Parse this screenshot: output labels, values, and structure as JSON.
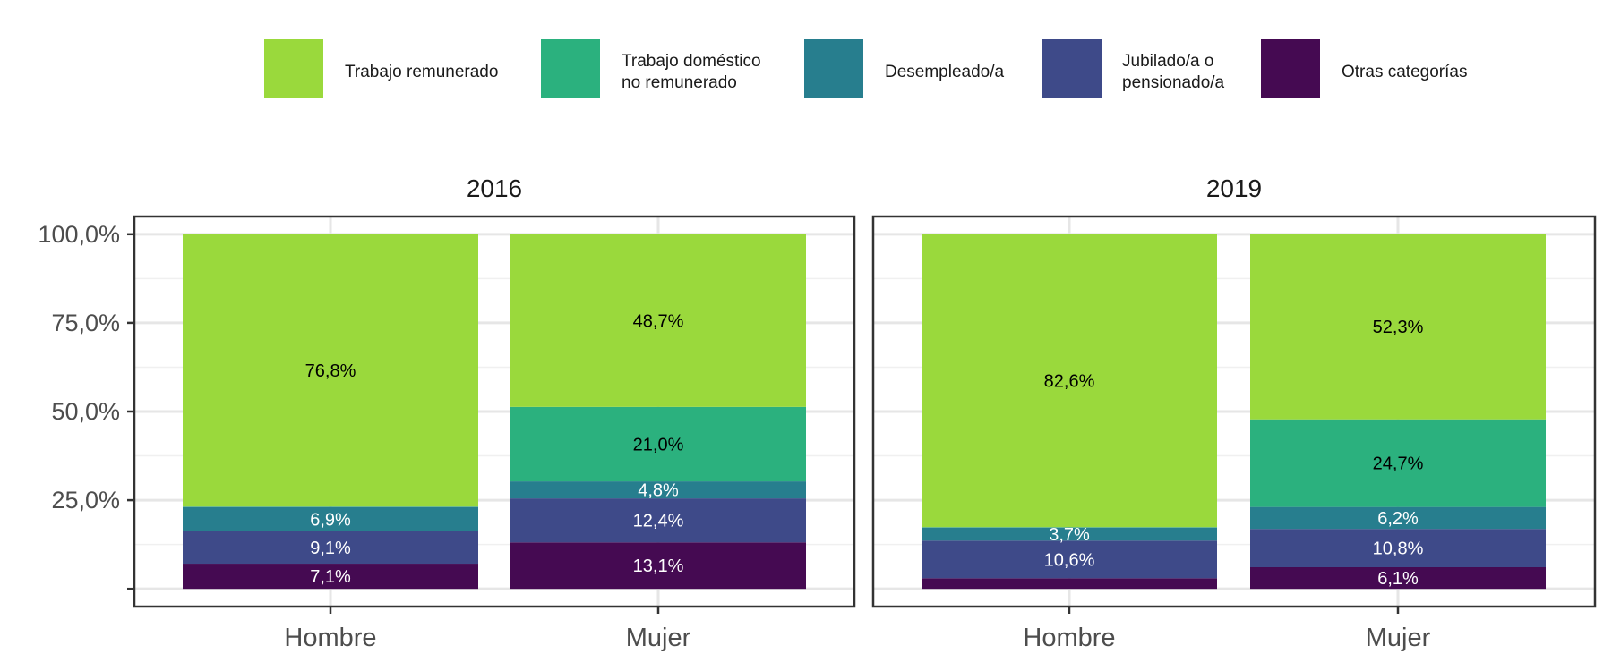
{
  "chart_data": {
    "type": "bar",
    "stacked": true,
    "percent": true,
    "ylim": [
      0,
      100
    ],
    "y_ticks": [
      {
        "value": 25,
        "label": "25,0%"
      },
      {
        "value": 50,
        "label": "50,0%"
      },
      {
        "value": 75,
        "label": "75,0%"
      },
      {
        "value": 100,
        "label": "100,0%"
      }
    ],
    "grid": true,
    "legend_position": "top",
    "categories": [
      "Hombre",
      "Mujer"
    ],
    "series": [
      {
        "key": "trabajo",
        "name": [
          "Trabajo remunerado"
        ],
        "color": "#9ad93c",
        "label_color": "#000000"
      },
      {
        "key": "domestico",
        "name": [
          "Trabajo doméstico",
          "no remunerado"
        ],
        "color": "#2bb17e",
        "label_color": "#000000"
      },
      {
        "key": "desempleado",
        "name": [
          "Desempleado/a"
        ],
        "color": "#277e8e",
        "label_color": "#ffffff"
      },
      {
        "key": "jubilado",
        "name": [
          "Jubilado/a o",
          "pensionado/a"
        ],
        "color": "#3e4a89",
        "label_color": "#ffffff"
      },
      {
        "key": "otras",
        "name": [
          "Otras categorías"
        ],
        "color": "#450a52",
        "label_color": "#ffffff"
      }
    ],
    "stack_order_bottom_to_top": [
      "otras",
      "jubilado",
      "desempleado",
      "domestico",
      "trabajo"
    ],
    "panels": [
      {
        "title": "2016",
        "bars": [
          {
            "category": "Hombre",
            "values": {
              "otras": 7.1,
              "jubilado": 9.1,
              "desempleado": 6.9,
              "domestico": 0.1,
              "trabajo": 76.8
            },
            "labels": {
              "otras": "7,1%",
              "jubilado": "9,1%",
              "desempleado": "6,9%",
              "trabajo": "76,8%"
            }
          },
          {
            "category": "Mujer",
            "values": {
              "otras": 13.1,
              "jubilado": 12.4,
              "desempleado": 4.8,
              "domestico": 21.0,
              "trabajo": 48.7
            },
            "labels": {
              "otras": "13,1%",
              "jubilado": "12,4%",
              "desempleado": "4,8%",
              "domestico": "21,0%",
              "trabajo": "48,7%"
            }
          }
        ]
      },
      {
        "title": "2019",
        "bars": [
          {
            "category": "Hombre",
            "values": {
              "otras": 3.0,
              "jubilado": 10.6,
              "desempleado": 3.7,
              "domestico": 0.1,
              "trabajo": 82.6
            },
            "labels": {
              "jubilado": "10,6%",
              "desempleado": "3,7%",
              "trabajo": "82,6%"
            }
          },
          {
            "category": "Mujer",
            "values": {
              "otras": 6.1,
              "jubilado": 10.8,
              "desempleado": 6.2,
              "domestico": 24.7,
              "trabajo": 52.3
            },
            "labels": {
              "otras": "6,1%",
              "jubilado": "10,8%",
              "desempleado": "6,2%",
              "domestico": "24,7%",
              "trabajo": "52,3%"
            }
          }
        ]
      }
    ]
  }
}
